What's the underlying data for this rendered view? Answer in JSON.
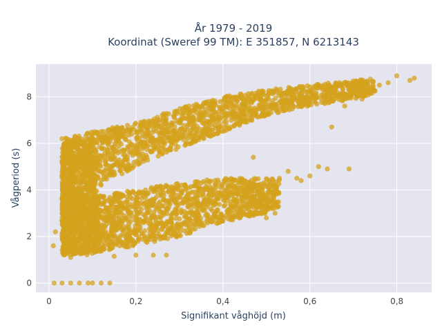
{
  "chart_data": {
    "type": "scatter",
    "title_lines": [
      "År 1979 - 2019",
      "Koordinat (Sweref 99 TM): E 351857, N 6213143"
    ],
    "xlabel": "Signifikant våghöjd (m)",
    "ylabel": "Vågperiod (s)",
    "xlim": [
      -0.03,
      0.88
    ],
    "ylim": [
      -0.4,
      9.4
    ],
    "xticks": [
      0,
      0.2,
      0.4,
      0.6,
      0.8
    ],
    "xtick_labels": [
      "0",
      "0,2",
      "0,4",
      "0,6",
      "0,8"
    ],
    "yticks": [
      0,
      2,
      4,
      6,
      8
    ],
    "ytick_labels": [
      "0",
      "2",
      "4",
      "6",
      "8"
    ],
    "grid": true,
    "legend": "none",
    "colors": {
      "marker": "#d4a11c",
      "plot_bg": "#e5e5ef",
      "grid": "#ffffff",
      "page_bg": "#ffffff"
    },
    "band_boundaries": {
      "x": [
        0.03,
        0.1,
        0.2,
        0.3,
        0.4,
        0.5,
        0.6,
        0.7,
        0.8
      ],
      "upper_low": [
        3.2,
        4.0,
        5.0,
        5.8,
        6.5,
        7.2,
        7.6,
        7.9,
        8.4
      ],
      "upper_high": [
        6.2,
        6.5,
        6.9,
        7.5,
        8.0,
        8.3,
        8.5,
        8.7,
        8.9
      ],
      "lower_low": [
        1.2,
        1.3,
        1.6,
        2.0,
        2.6,
        3.0,
        3.8
      ],
      "lower_high": [
        4.2,
        3.7,
        4.0,
        4.3,
        4.5,
        4.5,
        4.5
      ]
    },
    "extra_points": [
      [
        0.012,
        0.0
      ],
      [
        0.03,
        0.0
      ],
      [
        0.05,
        0.0
      ],
      [
        0.07,
        0.0
      ],
      [
        0.09,
        0.0
      ],
      [
        0.1,
        0.0
      ],
      [
        0.12,
        0.0
      ],
      [
        0.14,
        0.0
      ],
      [
        0.015,
        2.2
      ],
      [
        0.01,
        1.6
      ],
      [
        0.05,
        1.1
      ],
      [
        0.15,
        1.15
      ],
      [
        0.2,
        1.2
      ],
      [
        0.24,
        1.2
      ],
      [
        0.27,
        1.2
      ],
      [
        0.47,
        2.9
      ],
      [
        0.5,
        2.8
      ],
      [
        0.52,
        3.0
      ],
      [
        0.55,
        4.8
      ],
      [
        0.57,
        4.5
      ],
      [
        0.6,
        4.6
      ],
      [
        0.62,
        5.0
      ],
      [
        0.64,
        4.9
      ],
      [
        0.69,
        4.9
      ],
      [
        0.65,
        6.7
      ],
      [
        0.68,
        7.6
      ],
      [
        0.72,
        7.9
      ],
      [
        0.74,
        8.3
      ],
      [
        0.76,
        8.5
      ],
      [
        0.8,
        8.9
      ],
      [
        0.84,
        8.8
      ],
      [
        0.83,
        8.7
      ],
      [
        0.78,
        8.6
      ],
      [
        0.58,
        4.4
      ],
      [
        0.53,
        4.5
      ],
      [
        0.47,
        5.4
      ],
      [
        0.03,
        6.2
      ],
      [
        0.06,
        6.3
      ],
      [
        0.1,
        6.1
      ],
      [
        0.12,
        6.5
      ],
      [
        0.18,
        6.6
      ],
      [
        0.22,
        6.9
      ]
    ]
  }
}
